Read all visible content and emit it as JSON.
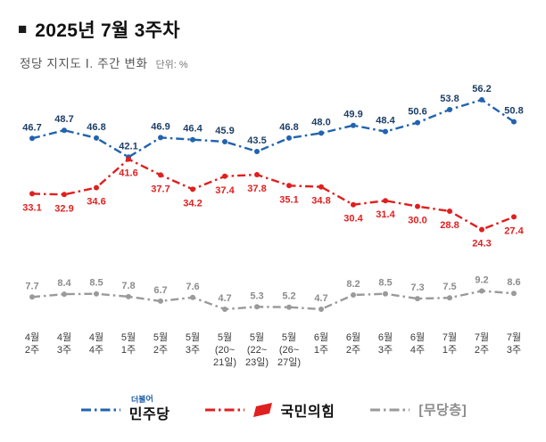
{
  "header": {
    "marker": "■",
    "title": "2025년 7월 3주차",
    "subtitle": "정당 지지도 Ⅰ. 주간 변화",
    "unit": "단위: %"
  },
  "legend": {
    "dem": {
      "top": "더불어",
      "label": "민주당"
    },
    "ppp": {
      "label": "국민의힘"
    },
    "ind": {
      "label": "[무당층]"
    }
  },
  "chart_data": {
    "type": "line",
    "title": "2025년 7월 3주차",
    "subtitle": "정당 지지도 Ⅰ. 주간 변화",
    "unit": "단위: %",
    "grid": false,
    "legend_position": "bottom",
    "ylim": [
      0,
      60
    ],
    "categories": [
      "4월 2주",
      "4월 3주",
      "4월 4주",
      "5월 1주",
      "5월 2주",
      "5월 3주",
      "5월 (20~21일)",
      "5월 (22~23일)",
      "5월 (26~27일)",
      "6월 1주",
      "6월 2주",
      "6월 3주",
      "6월 4주",
      "7월 1주",
      "7월 2주",
      "7월 3주"
    ],
    "categories_multiline": [
      [
        "4월",
        "2주"
      ],
      [
        "4월",
        "3주"
      ],
      [
        "4월",
        "4주"
      ],
      [
        "5월",
        "1주"
      ],
      [
        "5월",
        "2주"
      ],
      [
        "5월",
        "3주"
      ],
      [
        "5월",
        "(20~",
        "21일)"
      ],
      [
        "5월",
        "(22~",
        "23일)"
      ],
      [
        "5월",
        "(26~",
        "27일)"
      ],
      [
        "6월",
        "1주"
      ],
      [
        "6월",
        "2주"
      ],
      [
        "6월",
        "3주"
      ],
      [
        "6월",
        "4주"
      ],
      [
        "7월",
        "1주"
      ],
      [
        "7월",
        "2주"
      ],
      [
        "7월",
        "3주"
      ]
    ],
    "series": [
      {
        "name": "민주당",
        "color": "#2263ae",
        "label_color": "#1c3e66",
        "marker": "circle",
        "label_position": "above",
        "values": [
          46.7,
          48.7,
          46.8,
          42.1,
          46.9,
          46.4,
          45.9,
          43.5,
          46.8,
          48.0,
          49.9,
          48.4,
          50.6,
          53.8,
          56.2,
          50.8
        ]
      },
      {
        "name": "국민의힘",
        "color": "#e01f1f",
        "label_color": "#e01f1f",
        "marker": "circle",
        "label_position": "below",
        "values": [
          33.1,
          32.9,
          34.6,
          41.6,
          37.7,
          34.2,
          37.4,
          37.8,
          35.1,
          34.8,
          30.4,
          31.4,
          30.0,
          28.8,
          24.3,
          27.4
        ]
      },
      {
        "name": "[무당층]",
        "color": "#9a9a9a",
        "label_color": "#8c8c8c",
        "marker": "circle",
        "label_position": "above",
        "values": [
          7.7,
          8.4,
          8.5,
          7.8,
          6.7,
          7.6,
          4.7,
          5.3,
          5.2,
          4.7,
          8.2,
          8.5,
          7.3,
          7.5,
          9.2,
          8.6
        ]
      }
    ]
  }
}
